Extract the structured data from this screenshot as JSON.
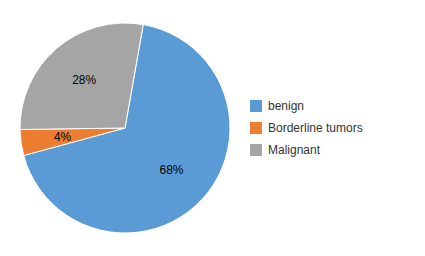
{
  "chart_data": {
    "type": "pie",
    "categories": [
      "benign",
      "Borderline tumors",
      "Malignant"
    ],
    "values": [
      68,
      4,
      28
    ],
    "value_labels": [
      "68%",
      "4%",
      "28%"
    ],
    "colors": [
      "#5B9BD5",
      "#ED7D31",
      "#A5A5A5"
    ],
    "data_labels": true,
    "legend": "right"
  }
}
